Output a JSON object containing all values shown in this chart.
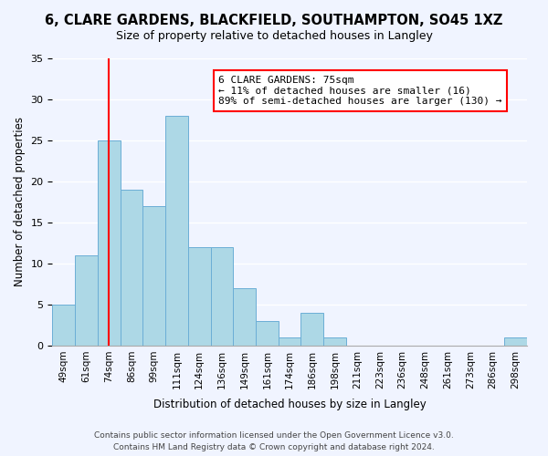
{
  "title": "6, CLARE GARDENS, BLACKFIELD, SOUTHAMPTON, SO45 1XZ",
  "subtitle": "Size of property relative to detached houses in Langley",
  "xlabel": "Distribution of detached houses by size in Langley",
  "ylabel": "Number of detached properties",
  "bar_color": "#add8e6",
  "bar_edge_color": "#6baed6",
  "background_color": "#f0f4ff",
  "vline_color": "red",
  "vline_x": 2,
  "categories": [
    "49sqm",
    "61sqm",
    "74sqm",
    "86sqm",
    "99sqm",
    "111sqm",
    "124sqm",
    "136sqm",
    "149sqm",
    "161sqm",
    "174sqm",
    "186sqm",
    "198sqm",
    "211sqm",
    "223sqm",
    "236sqm",
    "248sqm",
    "261sqm",
    "273sqm",
    "286sqm",
    "298sqm"
  ],
  "values": [
    5,
    11,
    25,
    19,
    17,
    28,
    12,
    12,
    7,
    3,
    1,
    4,
    1,
    0,
    0,
    0,
    0,
    0,
    0,
    0,
    1
  ],
  "ylim": [
    0,
    35
  ],
  "yticks": [
    0,
    5,
    10,
    15,
    20,
    25,
    30,
    35
  ],
  "annotation_title": "6 CLARE GARDENS: 75sqm",
  "annotation_line1": "← 11% of detached houses are smaller (16)",
  "annotation_line2": "89% of semi-detached houses are larger (130) →",
  "footer_line1": "Contains HM Land Registry data © Crown copyright and database right 2024.",
  "footer_line2": "Contains public sector information licensed under the Open Government Licence v3.0."
}
